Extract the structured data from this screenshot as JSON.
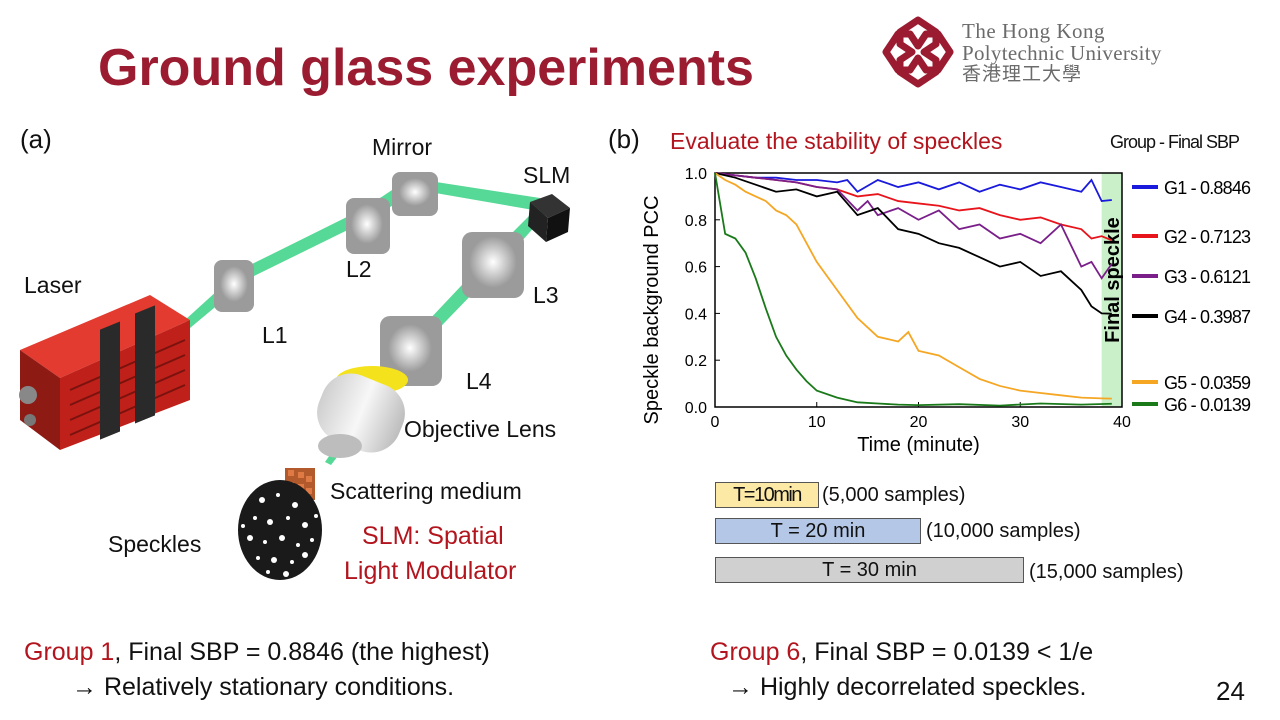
{
  "slide": {
    "title": "Ground glass experiments",
    "page_number": "24"
  },
  "logo": {
    "line1": "The Hong Kong",
    "line2": "Polytechnic University",
    "line3": "香港理工大學"
  },
  "panel_a": {
    "label": "(a)",
    "components": {
      "mirror": "Mirror",
      "slm": "SLM",
      "laser": "Laser",
      "l1": "L1",
      "l2": "L2",
      "l3": "L3",
      "l4": "L4",
      "objective": "Objective Lens",
      "scattering": "Scattering medium",
      "speckles": "Speckles"
    },
    "slm_note_line1": "SLM: Spatial",
    "slm_note_line2": "Light Modulator"
  },
  "panel_b": {
    "label": "(b)",
    "legend_title": "Group - Final SBP",
    "durations": [
      {
        "label": "T=10min",
        "note": "(5,000 samples)",
        "color": "#fde9a6"
      },
      {
        "label": "T = 20 min",
        "note": "(10,000 samples)",
        "color": "#b4c7e7"
      },
      {
        "label": "T = 30 min",
        "note": "(15,000 samples)",
        "color": "#d0d0d0"
      }
    ]
  },
  "chart_data": {
    "type": "line",
    "title": "Evaluate the stability of speckles",
    "xlabel": "Time (minute)",
    "ylabel": "Speckle background PCC",
    "xlim": [
      0,
      40
    ],
    "ylim": [
      0,
      1.0
    ],
    "xticks": [
      "0",
      "10",
      "20",
      "30",
      "40"
    ],
    "yticks": [
      "0.0",
      "0.2",
      "0.4",
      "0.6",
      "0.8",
      "1.0"
    ],
    "annotation": "Final speckle",
    "annotation_range": [
      38,
      40
    ],
    "series": [
      {
        "name": "G1 - 0.8846",
        "color": "#1a1adc",
        "x": [
          0,
          2,
          4,
          6,
          8,
          10,
          12,
          13,
          14,
          16,
          18,
          20,
          22,
          24,
          26,
          28,
          30,
          32,
          34,
          36,
          37,
          38,
          39
        ],
        "values": [
          1.0,
          0.99,
          0.98,
          0.98,
          0.97,
          0.97,
          0.96,
          0.97,
          0.92,
          0.97,
          0.94,
          0.96,
          0.93,
          0.96,
          0.92,
          0.95,
          0.93,
          0.96,
          0.94,
          0.92,
          0.97,
          0.88,
          0.8846
        ]
      },
      {
        "name": "G2 - 0.7123",
        "color": "#e8141c",
        "x": [
          0,
          2,
          4,
          6,
          8,
          10,
          12,
          14,
          16,
          18,
          20,
          22,
          24,
          26,
          28,
          30,
          32,
          34,
          36,
          37,
          38,
          39
        ],
        "values": [
          1.0,
          0.99,
          0.98,
          0.97,
          0.96,
          0.94,
          0.93,
          0.9,
          0.91,
          0.88,
          0.87,
          0.86,
          0.84,
          0.85,
          0.82,
          0.8,
          0.81,
          0.78,
          0.76,
          0.72,
          0.73,
          0.7123
        ]
      },
      {
        "name": "G3 - 0.6121",
        "color": "#7a1f8a",
        "x": [
          0,
          2,
          4,
          6,
          8,
          10,
          12,
          14,
          15,
          16,
          18,
          20,
          22,
          24,
          26,
          28,
          30,
          32,
          34,
          36,
          37,
          38,
          39
        ],
        "values": [
          1.0,
          0.99,
          0.98,
          0.97,
          0.96,
          0.94,
          0.93,
          0.84,
          0.88,
          0.82,
          0.85,
          0.8,
          0.84,
          0.76,
          0.78,
          0.72,
          0.74,
          0.7,
          0.78,
          0.6,
          0.62,
          0.55,
          0.6121
        ]
      },
      {
        "name": "G4 - 0.3987",
        "color": "#000000",
        "x": [
          0,
          2,
          4,
          6,
          8,
          10,
          12,
          14,
          16,
          18,
          20,
          22,
          24,
          26,
          28,
          30,
          32,
          34,
          36,
          37,
          38,
          39
        ],
        "values": [
          1.0,
          0.98,
          0.95,
          0.92,
          0.93,
          0.9,
          0.92,
          0.82,
          0.85,
          0.76,
          0.74,
          0.7,
          0.68,
          0.64,
          0.6,
          0.62,
          0.56,
          0.58,
          0.5,
          0.43,
          0.4,
          0.3987
        ]
      },
      {
        "name": "G5 - 0.0359",
        "color": "#f5a623",
        "x": [
          0,
          1,
          2,
          3,
          4,
          5,
          6,
          7,
          8,
          10,
          12,
          14,
          16,
          18,
          19,
          20,
          22,
          24,
          26,
          28,
          30,
          32,
          34,
          36,
          38,
          39
        ],
        "values": [
          1.0,
          0.97,
          0.95,
          0.92,
          0.9,
          0.88,
          0.84,
          0.82,
          0.78,
          0.62,
          0.5,
          0.38,
          0.3,
          0.28,
          0.32,
          0.24,
          0.22,
          0.17,
          0.12,
          0.09,
          0.07,
          0.06,
          0.05,
          0.04,
          0.037,
          0.0359
        ]
      },
      {
        "name": "G6 - 0.0139",
        "color": "#1a7a1a",
        "x": [
          0,
          1,
          2,
          3,
          4,
          5,
          6,
          7,
          8,
          9,
          10,
          12,
          14,
          16,
          18,
          20,
          24,
          28,
          32,
          36,
          39
        ],
        "values": [
          1.0,
          0.74,
          0.72,
          0.66,
          0.55,
          0.42,
          0.3,
          0.22,
          0.16,
          0.11,
          0.07,
          0.04,
          0.02,
          0.015,
          0.01,
          0.008,
          0.012,
          0.006,
          0.015,
          0.01,
          0.0139
        ]
      }
    ]
  },
  "bottom": {
    "left_group": "Group 1",
    "left_rest": ", Final SBP = 0.8846 (the highest)",
    "left_line2": "→ Relatively stationary conditions.",
    "right_group": "Group 6",
    "right_rest": ", Final SBP = 0.0139  < 1/e",
    "right_line2": "→ Highly decorrelated speckles."
  }
}
